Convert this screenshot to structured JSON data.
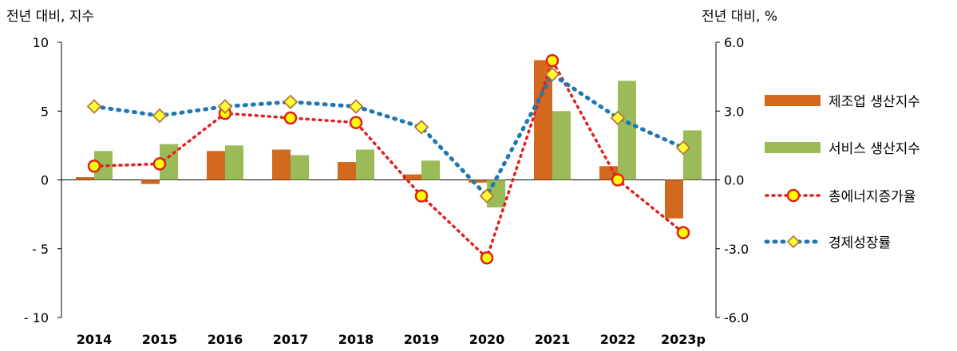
{
  "chart_data": {
    "type": "bar",
    "left_axis_title": "전년 대비, 지수",
    "right_axis_title": "전년 대비, %",
    "categories": [
      "2014",
      "2015",
      "2016",
      "2017",
      "2018",
      "2019",
      "2020",
      "2021",
      "2022",
      "2023p"
    ],
    "left_axis": {
      "ylim": [
        -10,
        10
      ],
      "ticks": [
        10,
        5,
        0,
        -5,
        -10
      ],
      "tick_labels": [
        "10",
        "5",
        "0",
        "- 5",
        "- 10"
      ]
    },
    "right_axis": {
      "ylim": [
        -6,
        6
      ],
      "ticks": [
        6,
        3,
        0,
        -3,
        -6
      ],
      "tick_labels": [
        "6.0",
        "3.0",
        "0.0",
        "-3.0",
        "-6.0"
      ]
    },
    "grid": false,
    "legend_position": "right",
    "series": [
      {
        "name": "제조업 생산지수",
        "kind": "bar",
        "axis": "left",
        "color": "#D2691E",
        "values": [
          0.2,
          -0.3,
          2.1,
          2.2,
          1.3,
          0.4,
          -0.2,
          8.7,
          1.0,
          -2.8
        ]
      },
      {
        "name": "서비스 생산지수",
        "kind": "bar",
        "axis": "left",
        "color": "#9BBB59",
        "values": [
          2.1,
          2.6,
          2.5,
          1.8,
          2.2,
          1.4,
          -2.0,
          5.0,
          7.2,
          3.6
        ]
      },
      {
        "name": "총에너지증가율",
        "kind": "line",
        "axis": "right",
        "color": "#E02020",
        "marker": "circle",
        "values": [
          0.6,
          0.7,
          2.9,
          2.7,
          2.5,
          -0.7,
          -3.4,
          5.2,
          0.0,
          -2.3
        ]
      },
      {
        "name": "경제성장률",
        "kind": "line",
        "axis": "right",
        "color": "#1F77B4",
        "marker": "diamond",
        "values": [
          3.2,
          2.8,
          3.2,
          3.4,
          3.2,
          2.3,
          -0.7,
          4.6,
          2.7,
          1.4
        ]
      }
    ]
  }
}
